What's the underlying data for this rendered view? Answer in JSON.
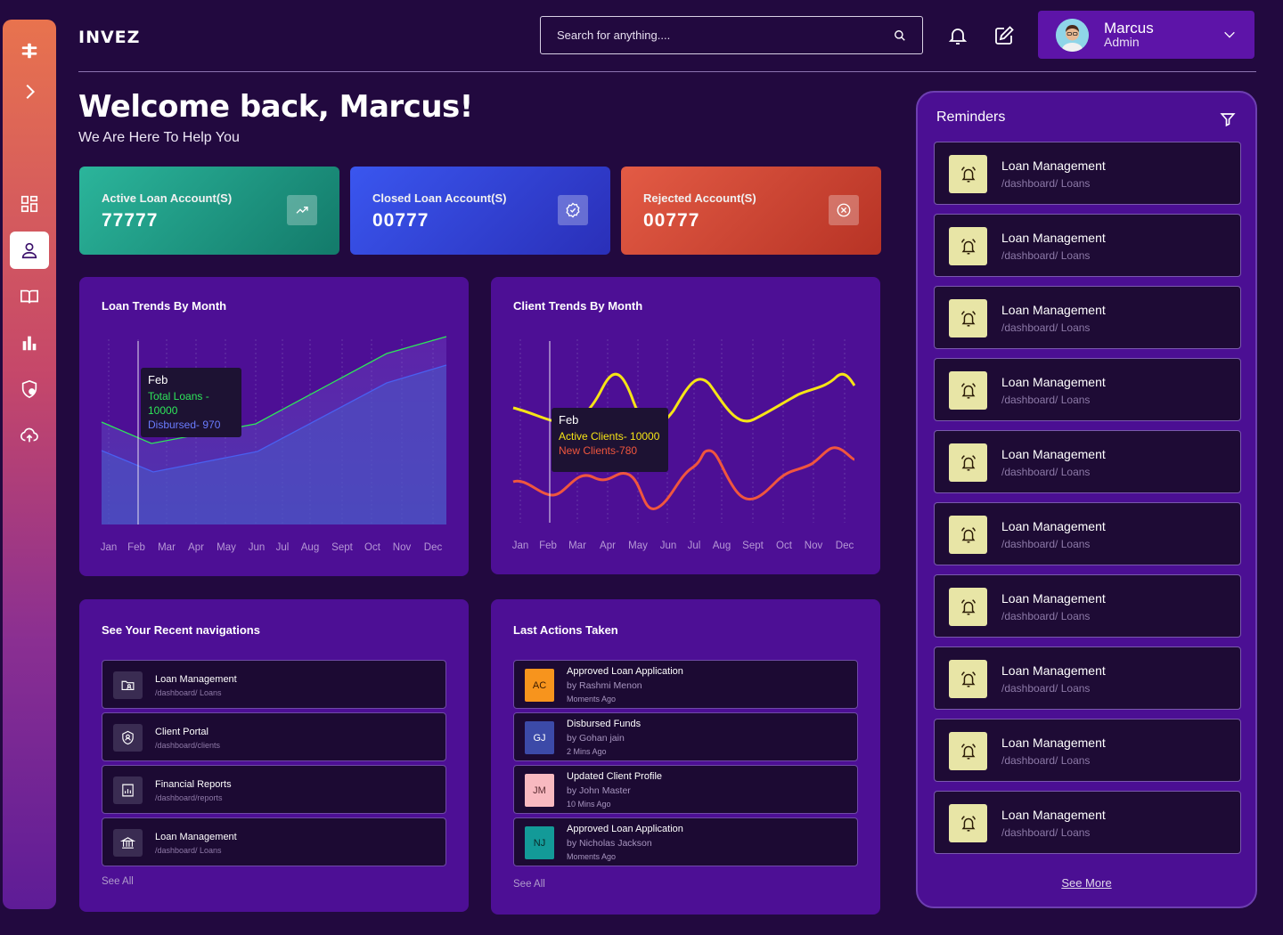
{
  "app": {
    "logo": "INVEZ"
  },
  "header": {
    "search_placeholder": "Search for anything....",
    "user": {
      "name": "Marcus",
      "role": "Admin"
    }
  },
  "welcome": {
    "title": "Welcome back, Marcus!",
    "subtitle": "We Are Here To Help You"
  },
  "stats": [
    {
      "label": "Active Loan Account(S)",
      "value": "77777",
      "icon": "trend-up-icon",
      "color_from": "#2bb59b",
      "color_to": "#137a6a"
    },
    {
      "label": "Closed Loan Account(S)",
      "value": "00777",
      "icon": "check-badge-icon",
      "color_from": "#3a56ef",
      "color_to": "#2a2fb8"
    },
    {
      "label": "Rejected Account(S)",
      "value": "00777",
      "icon": "close-circle-icon",
      "color_from": "#e35b45",
      "color_to": "#b73325"
    }
  ],
  "loan_chart": {
    "title": "Loan Trends By Month",
    "tooltip": {
      "month": "Feb",
      "line1": "Total Loans - 10000",
      "line2": "Disbursed- 970"
    },
    "months": [
      "Jan",
      "Feb",
      "Mar",
      "Apr",
      "May",
      "Jun",
      "Jul",
      "Aug",
      "Sept",
      "Oct",
      "Nov",
      "Dec"
    ]
  },
  "client_chart": {
    "title": "Client Trends By Month",
    "tooltip": {
      "month": "Feb",
      "line1": "Active Clients- 10000",
      "line2": "New Clients-780"
    },
    "months": [
      "Jan",
      "Feb",
      "Mar",
      "Apr",
      "May",
      "Jun",
      "Jul",
      "Aug",
      "Sept",
      "Oct",
      "Nov",
      "Dec"
    ]
  },
  "recent_nav": {
    "title": "See Your Recent navigations",
    "items": [
      {
        "title": "Loan Management",
        "path": "/dashboard/ Loans",
        "icon": "folder-user-icon"
      },
      {
        "title": "Client Portal",
        "path": "/dashboard/clients",
        "icon": "shield-user-icon"
      },
      {
        "title": "Financial Reports",
        "path": "/dashboard/reports",
        "icon": "report-chart-icon"
      },
      {
        "title": "Loan Management",
        "path": "/dashboard/ Loans",
        "icon": "bank-icon"
      }
    ],
    "see_all": "See All"
  },
  "last_actions": {
    "title": "Last Actions Taken",
    "items": [
      {
        "initials": "AC",
        "title": "Approved Loan Application",
        "by": "by Rashmi Menon",
        "time": "Moments Ago",
        "bg": "#f7941d",
        "fg": "#3a1a00"
      },
      {
        "initials": "GJ",
        "title": "Disbursed Funds",
        "by": "by Gohan jain",
        "time": "2 Mins Ago",
        "bg": "#3c4aa8",
        "fg": "#ffffff"
      },
      {
        "initials": "JM",
        "title": "Updated Client Profile",
        "by": "by John Master",
        "time": "10 Mins  Ago",
        "bg": "#f8b9c0",
        "fg": "#5a2a30"
      },
      {
        "initials": "NJ",
        "title": "Approved Loan Application",
        "by": "by Nicholas Jackson",
        "time": "Moments Ago",
        "bg": "#139a98",
        "fg": "#0b2a2a"
      }
    ],
    "see_all": "See All"
  },
  "reminders": {
    "title": "Reminders",
    "items": [
      {
        "title": "Loan Management",
        "path": "/dashboard/ Loans"
      },
      {
        "title": "Loan Management",
        "path": "/dashboard/ Loans"
      },
      {
        "title": "Loan Management",
        "path": "/dashboard/ Loans"
      },
      {
        "title": "Loan Management",
        "path": "/dashboard/ Loans"
      },
      {
        "title": "Loan Management",
        "path": "/dashboard/ Loans"
      },
      {
        "title": "Loan Management",
        "path": "/dashboard/ Loans"
      },
      {
        "title": "Loan Management",
        "path": "/dashboard/ Loans"
      },
      {
        "title": "Loan Management",
        "path": "/dashboard/ Loans"
      },
      {
        "title": "Loan Management",
        "path": "/dashboard/ Loans"
      },
      {
        "title": "Loan Management",
        "path": "/dashboard/ Loans"
      }
    ],
    "see_more": "See More"
  },
  "sidebar": {
    "items": [
      "logo-mark-icon",
      "expand-chevron-icon",
      "dashboard-icon",
      "user-icon",
      "book-icon",
      "bar-chart-icon",
      "shield-gear-icon",
      "cloud-upload-icon"
    ],
    "active": "user-icon"
  },
  "colors": {
    "background": "#22093f",
    "panel": "#4d0f95",
    "accent_green": "#2ee65a",
    "accent_blue": "#4a5ff0",
    "accent_yellow": "#f6e416",
    "accent_red": "#f0563e"
  }
}
